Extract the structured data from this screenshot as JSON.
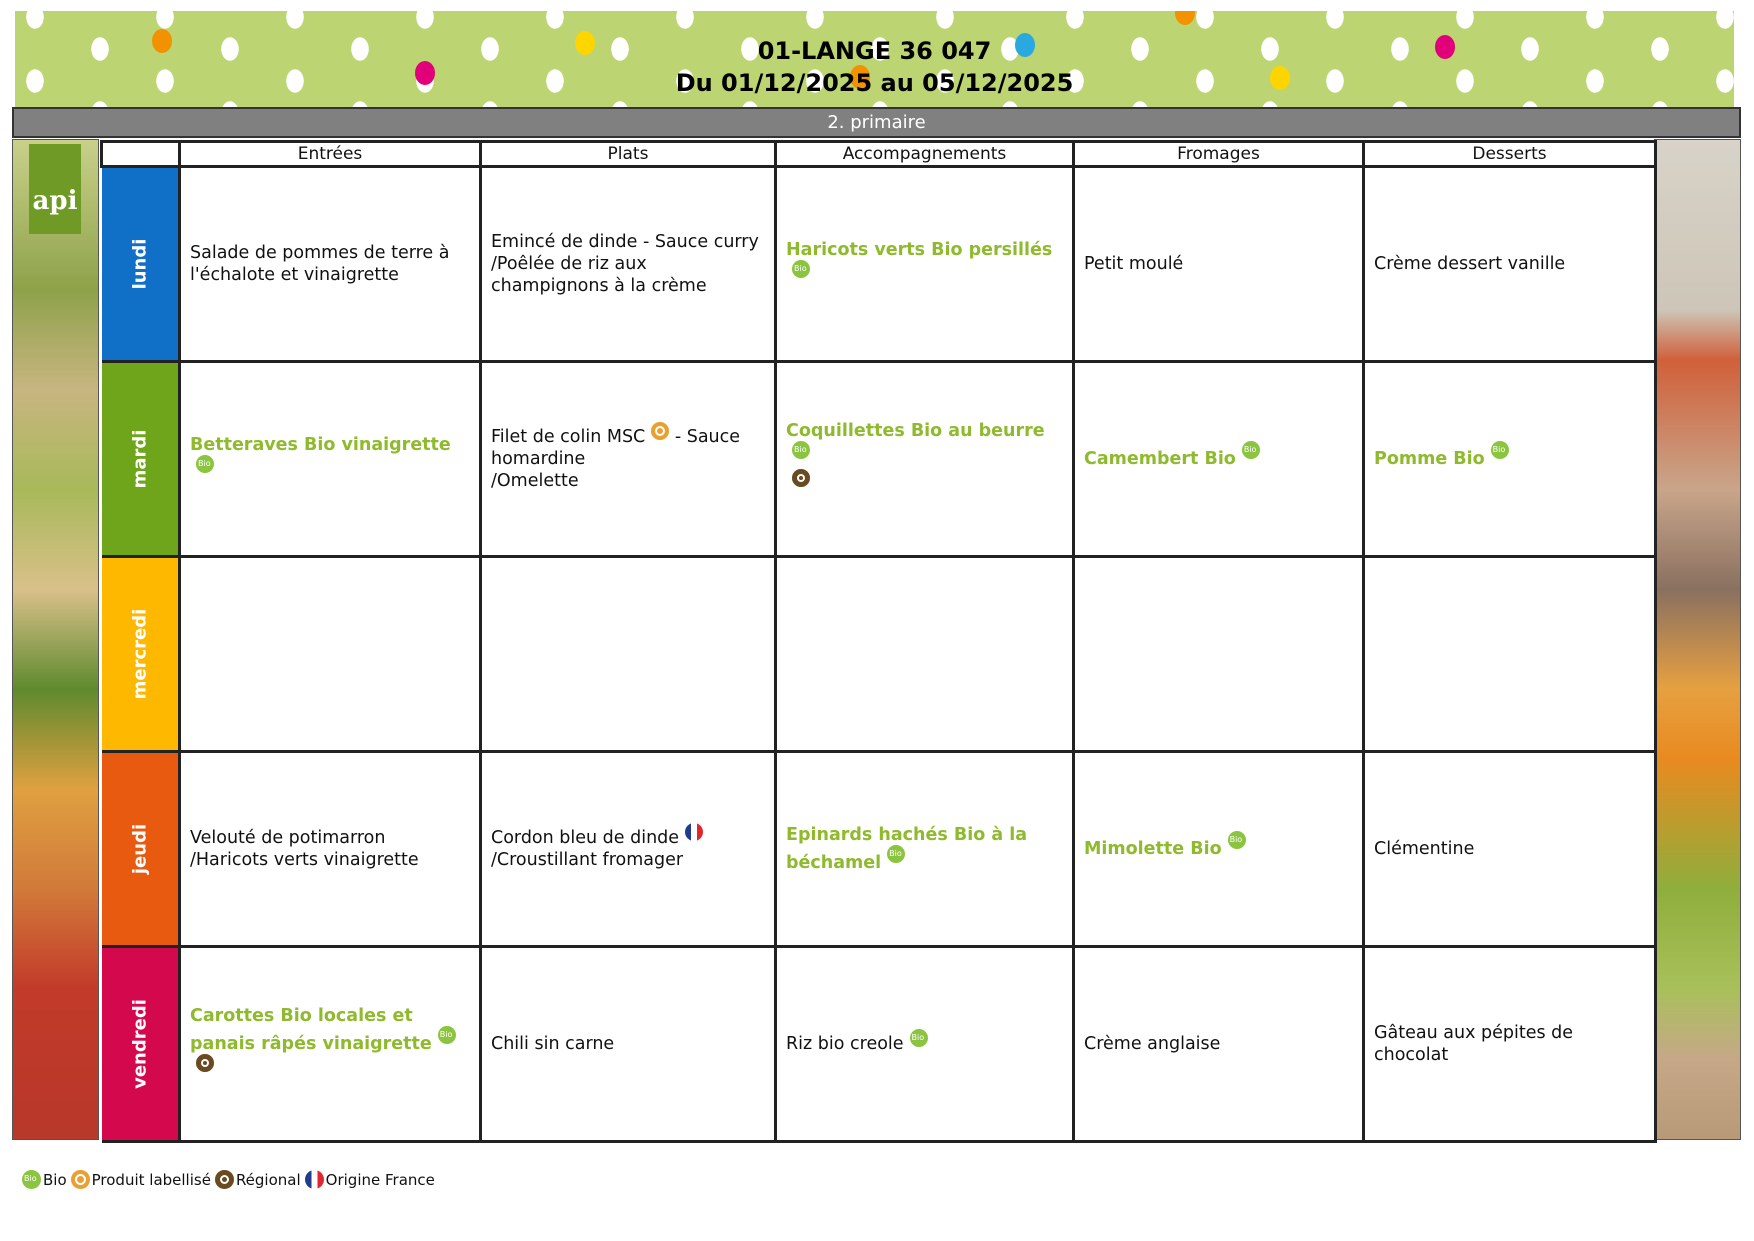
{
  "header": {
    "title": "01-LANGE 36 047",
    "dates": "Du 01/12/2025 au 05/12/2025",
    "group": "2. primaire"
  },
  "logo": "api",
  "colors": {
    "bio_text": "#8fba2e",
    "group_bar": "#808080",
    "banner": "#bcd472"
  },
  "columns": [
    "Entrées",
    "Plats",
    "Accompagnements",
    "Fromages",
    "Desserts"
  ],
  "rows": [
    {
      "day": "lundi",
      "color": "#1070c8",
      "cells": [
        {
          "parts": [
            {
              "t": "Salade de pommes de terre à l'échalote et vinaigrette"
            }
          ]
        },
        {
          "parts": [
            {
              "t": "Emincé de dinde - Sauce curry\n/Poêlée de riz aux champignons à la crème"
            }
          ]
        },
        {
          "green": true,
          "parts": [
            {
              "t": "Haricots verts Bio persillés"
            },
            {
              "br": true
            },
            {
              "i": "bio"
            }
          ]
        },
        {
          "parts": [
            {
              "t": "Petit moulé"
            }
          ]
        },
        {
          "parts": [
            {
              "t": "Crème dessert vanille"
            }
          ]
        }
      ]
    },
    {
      "day": "mardi",
      "color": "#6fa51a",
      "cells": [
        {
          "green": true,
          "parts": [
            {
              "t": "Betteraves Bio vinaigrette"
            },
            {
              "i": "bio"
            }
          ]
        },
        {
          "parts": [
            {
              "t": "Filet de colin MSC"
            },
            {
              "i": "label"
            },
            {
              "t": "  - Sauce homardine\n/Omelette"
            }
          ]
        },
        {
          "green": true,
          "parts": [
            {
              "t": "Coquillettes Bio au beurre"
            },
            {
              "i": "bio"
            },
            {
              "br": true
            },
            {
              "i": "regional"
            }
          ]
        },
        {
          "green": true,
          "parts": [
            {
              "t": "Camembert Bio"
            },
            {
              "i": "bio"
            }
          ]
        },
        {
          "green": true,
          "parts": [
            {
              "t": "Pomme Bio"
            },
            {
              "i": "bio"
            }
          ]
        }
      ]
    },
    {
      "day": "mercredi",
      "color": "#ffb800",
      "cells": [
        {
          "parts": []
        },
        {
          "parts": []
        },
        {
          "parts": []
        },
        {
          "parts": []
        },
        {
          "parts": []
        }
      ]
    },
    {
      "day": "jeudi",
      "color": "#e85a0f",
      "cells": [
        {
          "parts": [
            {
              "t": "Velouté de potimarron\n/Haricots verts vinaigrette"
            }
          ]
        },
        {
          "parts": [
            {
              "t": "Cordon bleu de dinde"
            },
            {
              "i": "france"
            },
            {
              "t": "\n/Croustillant fromager"
            }
          ]
        },
        {
          "green": true,
          "parts": [
            {
              "t": "Epinards hachés Bio à la béchamel"
            },
            {
              "i": "bio"
            }
          ]
        },
        {
          "green": true,
          "parts": [
            {
              "t": "Mimolette Bio"
            },
            {
              "i": "bio"
            }
          ]
        },
        {
          "parts": [
            {
              "t": "Clémentine"
            }
          ]
        }
      ]
    },
    {
      "day": "vendredi",
      "color": "#d4094d",
      "cells": [
        {
          "green": true,
          "parts": [
            {
              "t": "Carottes Bio locales et panais râpés vinaigrette"
            },
            {
              "i": "bio"
            },
            {
              "br": true
            },
            {
              "i": "regional"
            }
          ]
        },
        {
          "parts": [
            {
              "t": "Chili sin carne"
            }
          ]
        },
        {
          "parts": [
            {
              "t": "Riz bio creole"
            },
            {
              "i": "bio"
            }
          ]
        },
        {
          "parts": [
            {
              "t": "Crème anglaise"
            }
          ]
        },
        {
          "parts": [
            {
              "t": "Gâteau aux pépites de chocolat"
            }
          ]
        }
      ]
    }
  ],
  "legend": [
    {
      "icon": "bio",
      "label": "Bio"
    },
    {
      "icon": "label",
      "label": "Produit labellisé"
    },
    {
      "icon": "regional",
      "label": "Régional"
    },
    {
      "icon": "france",
      "label": "Origine France"
    }
  ]
}
